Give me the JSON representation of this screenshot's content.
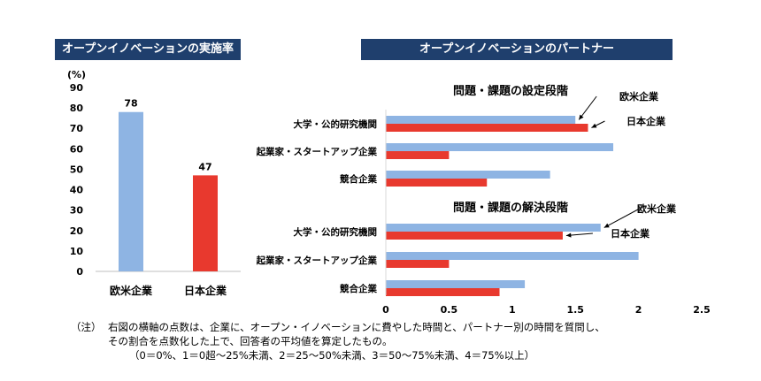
{
  "left_header": "オープンイノベーションの実施率",
  "right_header": "オープンイノベーションのパートナー",
  "chart_data": [
    {
      "type": "bar",
      "unit_label": "(%)",
      "categories": [
        "欧米企業",
        "日本企業"
      ],
      "values": [
        78,
        47
      ],
      "ylim": [
        0,
        90
      ],
      "yticks": [
        0,
        10,
        20,
        30,
        40,
        50,
        60,
        70,
        80,
        90
      ],
      "colors": [
        "#8eb4e3",
        "#e8392e"
      ],
      "grid": false
    },
    {
      "type": "bar",
      "orientation": "horizontal",
      "xlim": [
        0,
        2.5
      ],
      "xticks": [
        "0",
        "0.5",
        "1",
        "1.5",
        "2",
        "2.5"
      ],
      "groups": [
        {
          "title": "問題・課題の設定段階",
          "categories": [
            "大学・公的研究機関",
            "起業家・スタートアップ企業",
            "競合企業"
          ],
          "series": [
            {
              "name": "欧米企業",
              "color": "#8eb4e3",
              "values": [
                1.5,
                1.8,
                1.3
              ]
            },
            {
              "name": "日本企業",
              "color": "#e8392e",
              "values": [
                1.6,
                0.5,
                0.8
              ]
            }
          ]
        },
        {
          "title": "問題・課題の解決段階",
          "categories": [
            "大学・公的研究機関",
            "起業家・スタートアップ企業",
            "競合企業"
          ],
          "series": [
            {
              "name": "欧米企業",
              "color": "#8eb4e3",
              "values": [
                1.7,
                2.0,
                1.1
              ]
            },
            {
              "name": "日本企業",
              "color": "#e8392e",
              "values": [
                1.4,
                0.5,
                0.9
              ]
            }
          ]
        }
      ]
    }
  ],
  "note": {
    "marker": "（注）",
    "line1": "右図の横軸の点数は、企業に、オープン・イノベーションに費やした時間と、パートナー別の時間を質問し、",
    "line2": "その割合を点数化した上で、回答者の平均値を算定したもの。",
    "line3": "（0＝0%、1＝0超～25%未満、2＝25～50%未満、3＝50～75%未満、4＝75%以上）"
  }
}
